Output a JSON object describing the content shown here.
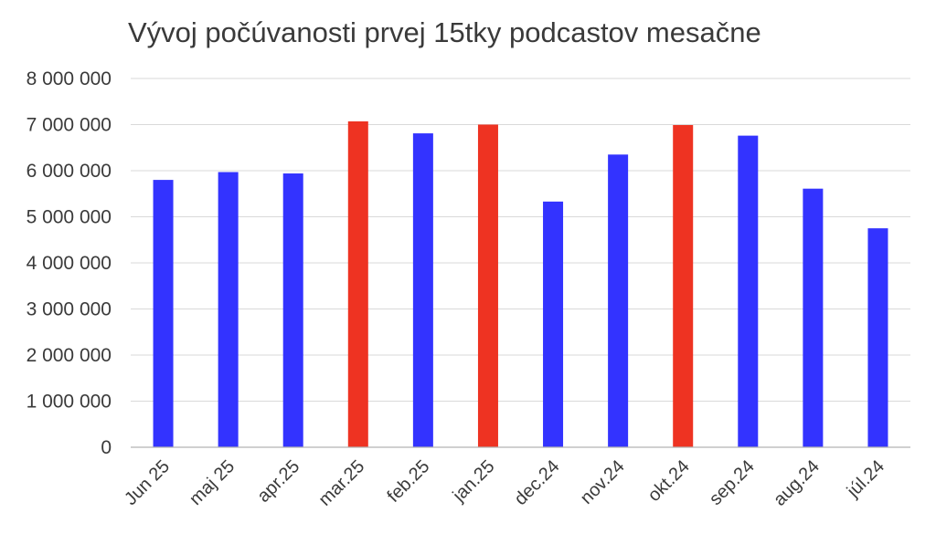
{
  "chart_data": {
    "type": "bar",
    "title": "Vývoj počúvanosti prvej 15tky podcastov mesačne",
    "xlabel": "",
    "ylabel": "",
    "ylim": [
      0,
      8000000
    ],
    "yticks": [
      0,
      1000000,
      2000000,
      3000000,
      4000000,
      5000000,
      6000000,
      7000000,
      8000000
    ],
    "ytick_labels": [
      "0",
      "1 000 000",
      "2 000 000",
      "3 000 000",
      "4 000 000",
      "5 000 000",
      "6 000 000",
      "7 000 000",
      "8 000 000"
    ],
    "categories": [
      "Jun 25",
      "maj 25",
      "apr.25",
      "mar.25",
      "feb.25",
      "jan.25",
      "dec.24",
      "nov.24",
      "okt.24",
      "sep.24",
      "aug.24",
      "júl.24"
    ],
    "values": [
      5800000,
      5970000,
      5940000,
      7070000,
      6810000,
      7000000,
      5330000,
      6350000,
      6990000,
      6760000,
      5610000,
      4750000
    ],
    "bar_colors": [
      "#3333ff",
      "#3333ff",
      "#3333ff",
      "#ee3322",
      "#3333ff",
      "#ee3322",
      "#3333ff",
      "#3333ff",
      "#ee3322",
      "#3333ff",
      "#3333ff",
      "#3333ff"
    ],
    "grid": true,
    "legend": "none"
  }
}
